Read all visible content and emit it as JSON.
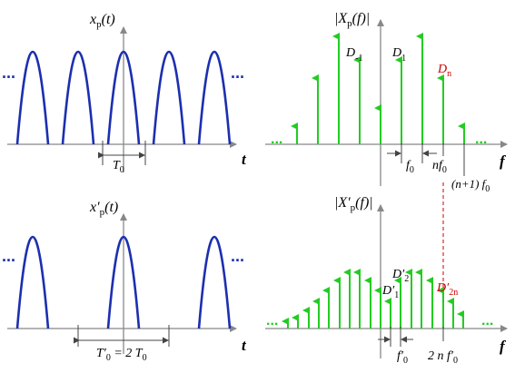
{
  "colors": {
    "signal": "#1c2fb0",
    "spectrum": "#22cc22",
    "axis": "#888888",
    "highlight": "#cc0000",
    "dim_line": "#444444"
  },
  "top_left": {
    "y_label": "x",
    "y_label_sub": "p",
    "y_label_arg": "(t)",
    "x_label": "t",
    "period_label": "T",
    "period_label_sub": "0",
    "ellipsis_left": "...",
    "ellipsis_right": "..."
  },
  "top_right": {
    "y_label": "|X",
    "y_label_sub": "p",
    "y_label_arg": "(f)|",
    "x_label": "f",
    "d_minus1": "D",
    "d_minus1_sub": "-1",
    "d_1": "D",
    "d_1_sub": "1",
    "d_n": "D",
    "d_n_sub": "n",
    "f0": "f",
    "f0_sub": "0",
    "nf0": "nf",
    "nf0_sub": "0",
    "n1f0": "(n+1) f",
    "n1f0_sub": "0",
    "ellipsis_left": "...",
    "ellipsis_right": "..."
  },
  "bottom_left": {
    "y_label": "x′",
    "y_label_sub": "p",
    "y_label_arg": "(t)",
    "x_label": "t",
    "period_label": "T′",
    "period_label_sub": "0",
    "period_eq": " = 2 T",
    "period_eq_sub": "0",
    "ellipsis_left": "...",
    "ellipsis_right": "..."
  },
  "bottom_right": {
    "y_label": "|X′",
    "y_label_sub": "p",
    "y_label_arg": "(f)|",
    "x_label": "f",
    "d1p": "D′",
    "d1p_sub": "1",
    "d2p": "D′",
    "d2p_sub": "2",
    "d2np": "D′",
    "d2np_sub": "2n",
    "f0p": "f′",
    "f0p_sub": "0",
    "twonf0p": "2 n f′",
    "twonf0p_sub": "0",
    "ellipsis_left": "...",
    "ellipsis_right": "..."
  }
}
